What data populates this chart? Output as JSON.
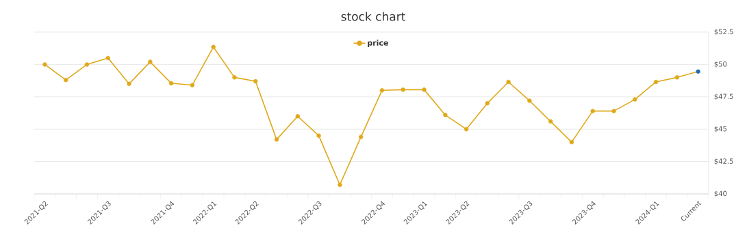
{
  "chart_data": {
    "type": "line",
    "title": "stock chart",
    "categories": [
      "2021-Q2",
      null,
      null,
      "2021-Q3",
      null,
      null,
      "2021-Q4",
      null,
      "2022-Q1",
      null,
      "2022-Q2",
      null,
      null,
      "2022-Q3",
      null,
      null,
      "2022-Q4",
      null,
      "2023-Q1",
      null,
      "2023-Q2",
      null,
      null,
      "2023-Q3",
      null,
      null,
      "2023-Q4",
      null,
      null,
      "2024-Q1",
      null,
      "Current"
    ],
    "series": [
      {
        "name": "price",
        "color": "#e0a91b",
        "values": [
          50.0,
          48.8,
          50.0,
          50.5,
          48.5,
          50.2,
          48.55,
          48.4,
          51.35,
          49.0,
          48.7,
          44.2,
          46.0,
          44.5,
          40.7,
          44.4,
          48.0,
          48.05,
          48.05,
          46.1,
          45.0,
          47.0,
          48.65,
          47.2,
          45.6,
          44.0,
          46.4,
          46.4,
          47.3,
          48.65,
          49.0,
          49.45
        ],
        "colors": [
          "#e0a91b",
          "#e0a91b",
          "#e0a91b",
          "#e0a91b",
          "#e0a91b",
          "#e0a91b",
          "#e0a91b",
          "#e0a91b",
          "#e0a91b",
          "#e0a91b",
          "#e0a91b",
          "#e0a91b",
          "#e0a91b",
          "#e0a91b",
          "#e0a91b",
          "#e0a91b",
          "#e0a91b",
          "#e0a91b",
          "#e0a91b",
          "#e0a91b",
          "#e0a91b",
          "#e0a91b",
          "#e0a91b",
          "#e0a91b",
          "#e0a91b",
          "#e0a91b",
          "#e0a91b",
          "#e0a91b",
          "#e0a91b",
          "#e0a91b",
          "#e0a91b",
          "#1f6fb0"
        ]
      }
    ],
    "ylim": [
      40,
      52.5
    ],
    "yticks": [
      {
        "value": 40,
        "label": "$40"
      },
      {
        "value": 42.5,
        "label": "$42.5"
      },
      {
        "value": 45,
        "label": "$45"
      },
      {
        "value": 47.5,
        "label": "$47.5"
      },
      {
        "value": 50,
        "label": "$50"
      },
      {
        "value": 52.5,
        "label": "$52.5"
      }
    ],
    "grid": "y",
    "legend": "top",
    "marker": "circle",
    "line_style": "solid"
  }
}
